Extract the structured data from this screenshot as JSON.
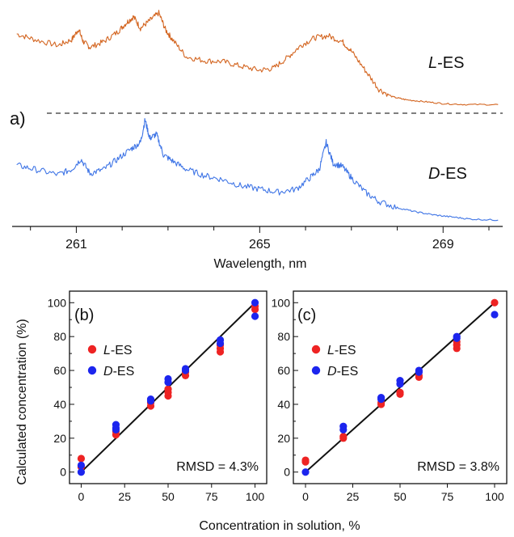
{
  "figure": {
    "panel_a_label": "a)",
    "panel_b_label": "(b)",
    "panel_c_label": "(c)",
    "xlabel_bottom": "Concentration in solution, %",
    "ylabel_left": "Calculated concentration (%)"
  },
  "colors": {
    "L_ES": "#d3641f",
    "D_ES": "#3f75e6",
    "red_marker": "#ee2323",
    "blue_marker": "#1c25ee",
    "fit_line": "#111111"
  },
  "chart_data": [
    {
      "id": "a",
      "type": "line",
      "title": "",
      "xlabel": "Wavelength, nm",
      "ylabel": "",
      "xlim": [
        259.6,
        270.3
      ],
      "xticks": [
        261,
        265,
        269
      ],
      "grid": false,
      "separator": "dashed",
      "series": [
        {
          "name": "L-ES",
          "name_prefix": "L",
          "name_suffix": "-ES",
          "color": "#d3641f",
          "x": [
            259.7,
            260.1,
            260.6,
            260.9,
            261.05,
            261.15,
            261.3,
            261.6,
            261.9,
            262.1,
            262.25,
            262.4,
            262.6,
            262.8,
            262.95,
            263.1,
            263.4,
            263.8,
            264.2,
            264.6,
            265.0,
            265.3,
            265.6,
            265.9,
            266.2,
            266.5,
            266.8,
            267.0,
            267.3,
            267.6,
            267.9,
            268.2,
            268.6,
            269.0,
            269.5,
            270.2
          ],
          "y": [
            0.78,
            0.72,
            0.66,
            0.72,
            0.83,
            0.7,
            0.64,
            0.7,
            0.8,
            0.9,
            0.96,
            0.84,
            0.92,
            1.0,
            0.82,
            0.72,
            0.54,
            0.5,
            0.49,
            0.44,
            0.4,
            0.42,
            0.53,
            0.66,
            0.74,
            0.76,
            0.7,
            0.6,
            0.4,
            0.2,
            0.12,
            0.09,
            0.07,
            0.05,
            0.04,
            0.04
          ]
        },
        {
          "name": "D-ES",
          "name_prefix": "D",
          "name_suffix": "-ES",
          "color": "#3f75e6",
          "x": [
            259.7,
            260.1,
            260.6,
            260.9,
            261.1,
            261.3,
            261.6,
            261.9,
            262.2,
            262.4,
            262.5,
            262.6,
            262.75,
            262.9,
            263.1,
            263.4,
            263.8,
            264.2,
            264.6,
            265.0,
            265.4,
            265.8,
            266.1,
            266.3,
            266.45,
            266.6,
            266.8,
            267.0,
            267.3,
            267.6,
            268.0,
            268.4,
            268.8,
            269.2,
            269.6,
            270.2
          ],
          "y": [
            0.56,
            0.52,
            0.47,
            0.52,
            0.62,
            0.48,
            0.52,
            0.62,
            0.72,
            0.78,
            1.0,
            0.82,
            0.86,
            0.66,
            0.6,
            0.52,
            0.46,
            0.42,
            0.36,
            0.33,
            0.3,
            0.33,
            0.44,
            0.52,
            0.78,
            0.58,
            0.55,
            0.44,
            0.3,
            0.21,
            0.15,
            0.11,
            0.08,
            0.06,
            0.04,
            0.03
          ]
        }
      ]
    },
    {
      "id": "b",
      "type": "scatter",
      "title": "",
      "xlabel": "",
      "ylabel": "",
      "xlim": [
        -3,
        103
      ],
      "ylim": [
        -3,
        103
      ],
      "xticks": [
        0,
        25,
        50,
        75,
        100
      ],
      "yticks": [
        0,
        20,
        40,
        60,
        80,
        100
      ],
      "annotation": "RMSD = 4.3%",
      "legend": "left",
      "fit": {
        "x": [
          0,
          100
        ],
        "y": [
          0,
          100
        ]
      },
      "series": [
        {
          "name": "L-ES",
          "name_prefix": "L",
          "name_suffix": "-ES",
          "color": "#ee2323",
          "x": [
            0,
            0,
            20,
            20,
            40,
            40,
            50,
            50,
            50,
            60,
            60,
            80,
            80,
            80,
            100,
            100
          ],
          "y": [
            8,
            3,
            22,
            24,
            39,
            41,
            45,
            47,
            49,
            57,
            59,
            71,
            73,
            75,
            96,
            98
          ]
        },
        {
          "name": "D-ES",
          "name_prefix": "D",
          "name_suffix": "-ES",
          "color": "#1c25ee",
          "x": [
            0,
            0,
            20,
            20,
            20,
            40,
            40,
            50,
            50,
            60,
            60,
            80,
            80,
            100,
            100
          ],
          "y": [
            4,
            0,
            26,
            28,
            25,
            42,
            43,
            53,
            55,
            60,
            61,
            76,
            78,
            100,
            92
          ]
        }
      ]
    },
    {
      "id": "c",
      "type": "scatter",
      "title": "",
      "xlabel": "",
      "ylabel": "",
      "xlim": [
        -3,
        103
      ],
      "ylim": [
        -3,
        103
      ],
      "xticks": [
        0,
        25,
        50,
        75,
        100
      ],
      "yticks": [
        0,
        20,
        40,
        60,
        80,
        100
      ],
      "annotation": "RMSD = 3.8%",
      "legend": "left",
      "fit": {
        "x": [
          0,
          100
        ],
        "y": [
          0,
          100
        ]
      },
      "series": [
        {
          "name": "L-ES",
          "name_prefix": "L",
          "name_suffix": "-ES",
          "color": "#ee2323",
          "x": [
            0,
            0,
            20,
            20,
            40,
            40,
            50,
            50,
            60,
            60,
            80,
            80,
            80,
            100
          ],
          "y": [
            7,
            6,
            20,
            21,
            40,
            41,
            46,
            47,
            56,
            57,
            73,
            75,
            77,
            100
          ]
        },
        {
          "name": "D-ES",
          "name_prefix": "D",
          "name_suffix": "-ES",
          "color": "#1c25ee",
          "x": [
            0,
            20,
            20,
            40,
            40,
            50,
            50,
            60,
            60,
            80,
            80,
            100
          ],
          "y": [
            0,
            25,
            27,
            43,
            44,
            52,
            54,
            59,
            60,
            79,
            80,
            93
          ]
        }
      ]
    }
  ]
}
